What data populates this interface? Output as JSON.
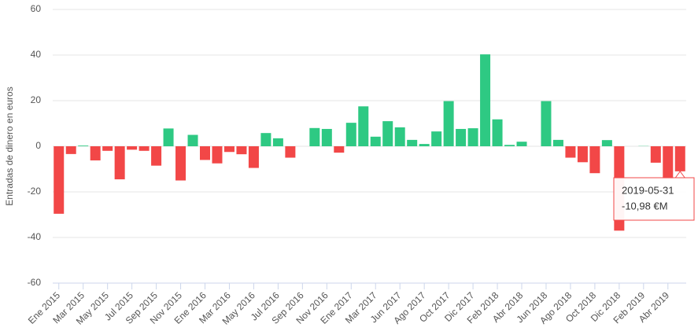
{
  "chart_data": {
    "type": "bar",
    "y_label": "Entradas de dinero en euros",
    "categories": [
      "Ene 2015",
      null,
      "Mar 2015",
      null,
      "May 2015",
      null,
      "Jul 2015",
      null,
      "Sep 2015",
      null,
      "Nov 2015",
      null,
      "Ene 2016",
      null,
      "Mar 2016",
      null,
      "May 2016",
      null,
      "Jul 2016",
      null,
      "Sep 2016",
      null,
      "Nov 2016",
      null,
      "Ene 2017",
      null,
      "Mar 2017",
      null,
      "Jun 2017",
      null,
      "Ago 2017",
      null,
      "Oct 2017",
      null,
      "Dic 2017",
      null,
      "Feb 2018",
      null,
      "Abr 2018",
      null,
      "Jun 2018",
      null,
      "Ago 2018",
      null,
      "Oct 2018",
      null,
      "Dic 2018",
      null,
      "Feb 2019",
      null,
      "Abr 2019",
      null
    ],
    "values": [
      -29.6,
      -3.4,
      0.3,
      -6.2,
      -2,
      -14.5,
      -1.5,
      -2,
      -8.5,
      7.8,
      -15,
      5,
      -6,
      -7.5,
      -2.5,
      -3.5,
      -9.5,
      5.8,
      3.5,
      -5,
      0,
      8,
      7.6,
      -2.8,
      10.3,
      17.5,
      4.2,
      11,
      8.3,
      2.8,
      1,
      6.5,
      19.8,
      7.6,
      7.9,
      40.3,
      11.8,
      0.6,
      2,
      0,
      19.8,
      2.8,
      -5,
      -7,
      -11.8,
      2.7,
      -37,
      0,
      0.1,
      -7.2,
      -14.5,
      -10.98
    ],
    "colors": {
      "positive": "#2ec983",
      "negative": "#f24747"
    },
    "ylim": [
      -60,
      60
    ],
    "yticks": [
      -60,
      -40,
      -20,
      0,
      20,
      40,
      60
    ],
    "grid": true,
    "tooltip": {
      "date": "2019-05-31",
      "label": "-10,98 €M"
    }
  }
}
